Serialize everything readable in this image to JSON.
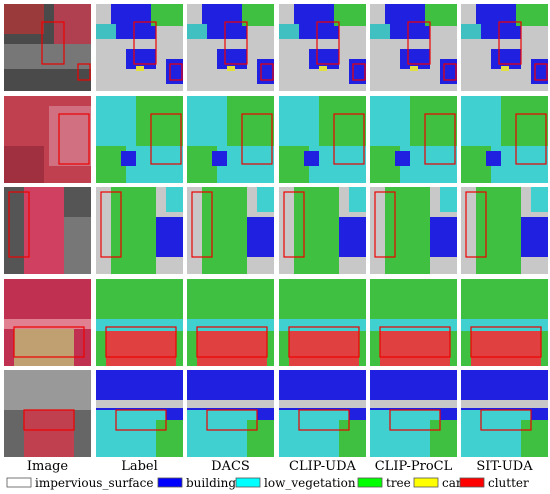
{
  "columns": [
    "Image",
    "Label",
    "DACS",
    "CLIP-UDA",
    "CLIP-ProCL",
    "SIT-UDA"
  ],
  "legend": [
    {
      "label": "impervious_surface",
      "color": "#ffffff"
    },
    {
      "label": "building",
      "color": "#0000ff"
    },
    {
      "label": "low_vegetation",
      "color": "#00ffff"
    },
    {
      "label": "tree",
      "color": "#00ff00"
    },
    {
      "label": "car",
      "color": "#ffff00"
    },
    {
      "label": "clutter",
      "color": "#ff0000"
    }
  ]
}
